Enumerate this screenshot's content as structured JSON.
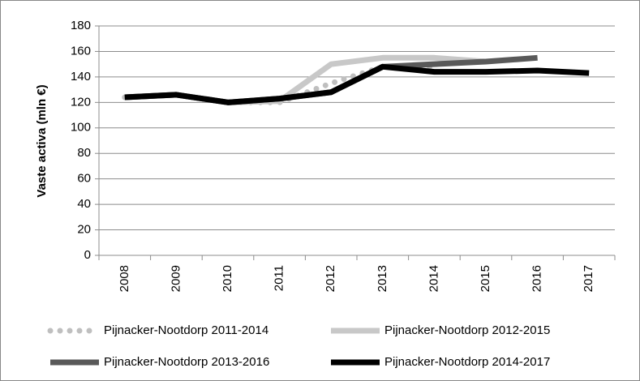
{
  "chart_data": {
    "type": "line",
    "y_label": "Vaste activa (mln €)",
    "categories": [
      "2008",
      "2009",
      "2010",
      "2011",
      "2012",
      "2013",
      "2014",
      "2015",
      "2016",
      "2017"
    ],
    "series": [
      {
        "name": "Pijnacker-Nootdorp 2011-2014",
        "color": "#bfbfbf",
        "line_style": "dotted",
        "values": [
          124,
          126,
          120,
          120,
          135,
          148,
          148,
          null,
          null,
          null
        ]
      },
      {
        "name": "Pijnacker-Nootdorp 2012-2015",
        "color": "#c8c8c8",
        "line_style": "solid",
        "values": [
          124,
          126,
          120,
          121,
          150,
          155,
          155,
          152,
          null,
          null
        ]
      },
      {
        "name": "Pijnacker-Nootdorp 2013-2016",
        "color": "#595959",
        "line_style": "solid",
        "values": [
          124,
          126,
          120,
          123,
          128,
          148,
          150,
          152,
          155,
          null
        ]
      },
      {
        "name": "Pijnacker-Nootdorp 2014-2017",
        "color": "#000000",
        "line_style": "solid",
        "values": [
          124,
          126,
          120,
          123,
          128,
          148,
          144,
          144,
          145,
          143
        ]
      }
    ],
    "ylim": [
      0,
      180
    ],
    "yticks": [
      0,
      20,
      40,
      60,
      80,
      100,
      120,
      140,
      160,
      180
    ],
    "grid": true
  }
}
